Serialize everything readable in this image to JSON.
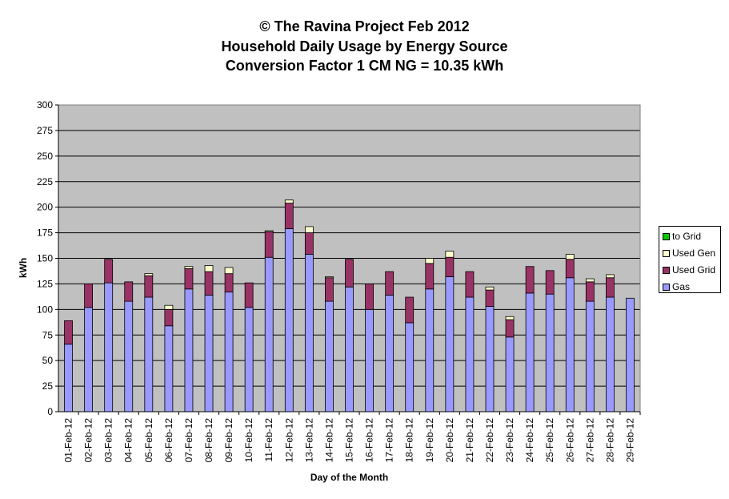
{
  "title_lines": [
    "© The Ravina Project Feb 2012",
    "Household Daily Usage by Energy Source",
    "Conversion Factor 1 CM NG = 10.35 kWh"
  ],
  "chart_data": {
    "type": "bar",
    "stacked": true,
    "xlabel": "Day of the Month",
    "ylabel": "kWh",
    "ylim": [
      0,
      300
    ],
    "yticks": [
      0,
      25,
      50,
      75,
      100,
      125,
      150,
      175,
      200,
      225,
      250,
      275,
      300
    ],
    "grid": true,
    "legend_position": "right",
    "categories": [
      "01-Feb-12",
      "02-Feb-12",
      "03-Feb-12",
      "04-Feb-12",
      "05-Feb-12",
      "06-Feb-12",
      "07-Feb-12",
      "08-Feb-12",
      "09-Feb-12",
      "10-Feb-12",
      "11-Feb-12",
      "12-Feb-12",
      "13-Feb-12",
      "14-Feb-12",
      "15-Feb-12",
      "16-Feb-12",
      "17-Feb-12",
      "18-Feb-12",
      "19-Feb-12",
      "20-Feb-12",
      "21-Feb-12",
      "22-Feb-12",
      "23-Feb-12",
      "24-Feb-12",
      "25-Feb-12",
      "26-Feb-12",
      "27-Feb-12",
      "28-Feb-12",
      "29-Feb-12"
    ],
    "series": [
      {
        "name": "Gas",
        "color": "#9999ff",
        "values": [
          66,
          102,
          126,
          108,
          112,
          84,
          120,
          114,
          117,
          102,
          151,
          179,
          154,
          108,
          122,
          100,
          114,
          87,
          120,
          132,
          112,
          103,
          73,
          116,
          115,
          131,
          108,
          112,
          111
        ]
      },
      {
        "name": "Used Grid",
        "color": "#993366",
        "values": [
          23,
          23,
          23,
          19,
          21,
          16,
          20,
          23,
          18,
          24,
          25,
          25,
          21,
          23,
          27,
          25,
          23,
          25,
          25,
          19,
          25,
          16,
          17,
          26,
          23,
          18,
          19,
          19,
          0
        ]
      },
      {
        "name": "Used Gen",
        "color": "#ffffcc",
        "values": [
          0,
          0,
          0,
          0,
          2,
          4,
          2,
          6,
          6,
          0,
          1,
          3,
          6,
          1,
          0,
          0,
          0,
          0,
          5,
          6,
          0,
          3,
          3,
          0,
          0,
          5,
          3,
          3,
          0
        ]
      },
      {
        "name": "to Grid",
        "color": "#00cc00",
        "values": [
          0,
          0,
          0,
          0,
          0,
          0,
          0,
          0,
          0,
          0,
          0,
          0,
          0,
          0,
          0,
          0,
          0,
          0,
          0,
          0,
          0,
          0,
          0,
          0,
          0,
          0,
          0,
          0,
          0
        ]
      }
    ]
  },
  "legend_order": [
    "to Grid",
    "Used Gen",
    "Used Grid",
    "Gas"
  ],
  "colors": {
    "plot_bg": "#c0c0c0",
    "grid": "#000000"
  }
}
